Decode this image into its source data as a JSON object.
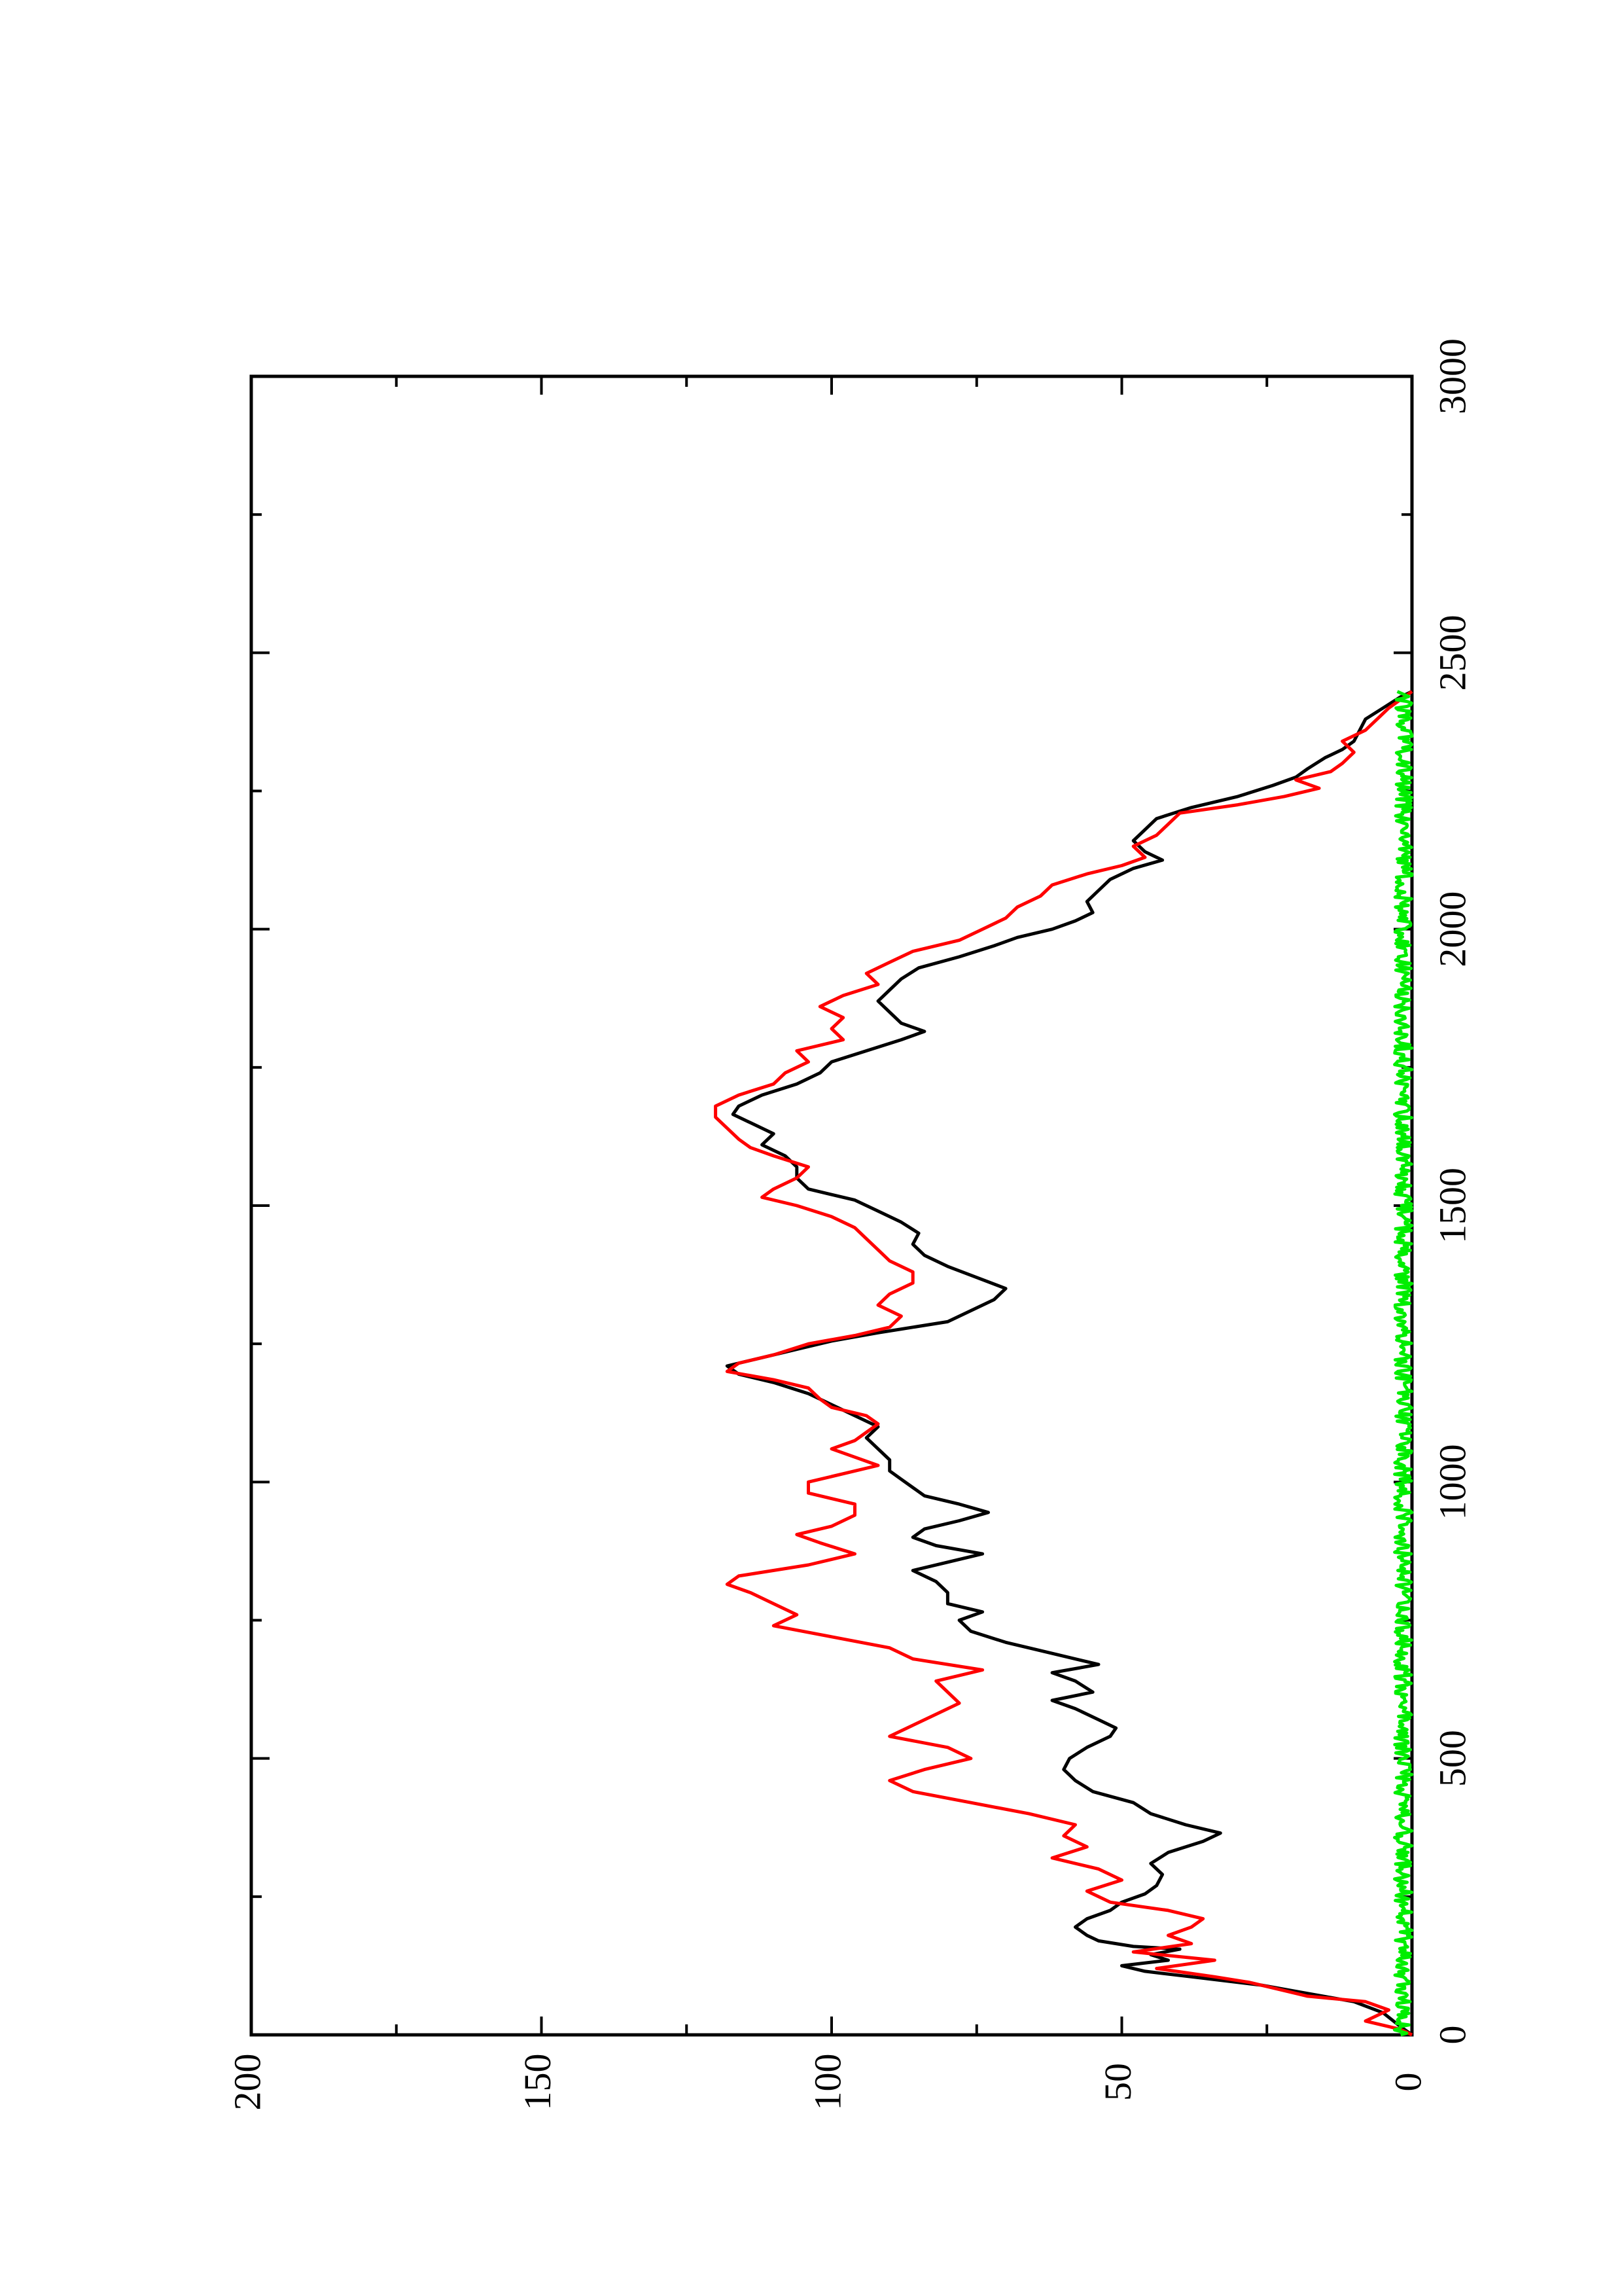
{
  "chart_data": {
    "type": "line",
    "orientation": "rotated-90-counterclockwise",
    "title": "",
    "xlabel": "",
    "ylabel": "",
    "xlim": [
      0,
      3000
    ],
    "ylim": [
      0,
      200
    ],
    "x_ticks": [
      0,
      500,
      1000,
      1500,
      2000,
      2500,
      3000
    ],
    "x_minor_ticks": [
      250,
      750,
      1250,
      1750,
      2250,
      2750
    ],
    "y_ticks": [
      0,
      50,
      100,
      150,
      200
    ],
    "y_minor_ticks": [
      25,
      75,
      125,
      175
    ],
    "x_tick_labels": [
      "0",
      "500",
      "1000",
      "1500",
      "2000",
      "2500",
      "3000"
    ],
    "y_tick_labels": [
      "0",
      "50",
      "100",
      "150",
      "200"
    ],
    "grid": false,
    "legend": "none",
    "series": [
      {
        "color": "#000000",
        "points": [
          [
            0,
            0
          ],
          [
            15,
            2
          ],
          [
            40,
            5
          ],
          [
            60,
            10
          ],
          [
            75,
            18
          ],
          [
            90,
            26
          ],
          [
            105,
            38
          ],
          [
            115,
            46
          ],
          [
            125,
            50
          ],
          [
            135,
            42
          ],
          [
            145,
            45
          ],
          [
            155,
            40
          ],
          [
            160,
            48
          ],
          [
            170,
            54
          ],
          [
            180,
            56
          ],
          [
            195,
            58
          ],
          [
            210,
            56
          ],
          [
            225,
            52
          ],
          [
            240,
            50
          ],
          [
            255,
            46
          ],
          [
            270,
            44
          ],
          [
            290,
            43
          ],
          [
            310,
            45
          ],
          [
            330,
            42
          ],
          [
            350,
            36
          ],
          [
            365,
            33
          ],
          [
            380,
            39
          ],
          [
            400,
            45
          ],
          [
            420,
            48
          ],
          [
            440,
            55
          ],
          [
            460,
            58
          ],
          [
            480,
            60
          ],
          [
            500,
            59
          ],
          [
            520,
            56
          ],
          [
            540,
            52
          ],
          [
            555,
            51
          ],
          [
            570,
            54
          ],
          [
            590,
            58
          ],
          [
            605,
            62
          ],
          [
            620,
            55
          ],
          [
            640,
            58
          ],
          [
            655,
            62
          ],
          [
            670,
            54
          ],
          [
            690,
            62
          ],
          [
            710,
            70
          ],
          [
            730,
            76
          ],
          [
            750,
            78
          ],
          [
            765,
            74
          ],
          [
            780,
            80
          ],
          [
            800,
            80
          ],
          [
            820,
            82
          ],
          [
            840,
            86
          ],
          [
            855,
            80
          ],
          [
            870,
            74
          ],
          [
            885,
            82
          ],
          [
            900,
            86
          ],
          [
            915,
            84
          ],
          [
            930,
            78
          ],
          [
            945,
            73
          ],
          [
            960,
            78
          ],
          [
            975,
            84
          ],
          [
            990,
            86
          ],
          [
            1005,
            88
          ],
          [
            1020,
            90
          ],
          [
            1040,
            90
          ],
          [
            1060,
            92
          ],
          [
            1080,
            94
          ],
          [
            1100,
            92
          ],
          [
            1120,
            96
          ],
          [
            1140,
            100
          ],
          [
            1160,
            104
          ],
          [
            1180,
            110
          ],
          [
            1195,
            116
          ],
          [
            1210,
            118
          ],
          [
            1225,
            112
          ],
          [
            1240,
            106
          ],
          [
            1255,
            100
          ],
          [
            1270,
            92
          ],
          [
            1290,
            80
          ],
          [
            1310,
            76
          ],
          [
            1330,
            72
          ],
          [
            1350,
            70
          ],
          [
            1370,
            75
          ],
          [
            1390,
            80
          ],
          [
            1410,
            84
          ],
          [
            1430,
            86
          ],
          [
            1450,
            85
          ],
          [
            1470,
            88
          ],
          [
            1490,
            92
          ],
          [
            1510,
            96
          ],
          [
            1530,
            104
          ],
          [
            1550,
            106
          ],
          [
            1570,
            106
          ],
          [
            1590,
            108
          ],
          [
            1610,
            112
          ],
          [
            1630,
            110
          ],
          [
            1650,
            114
          ],
          [
            1665,
            117
          ],
          [
            1680,
            116
          ],
          [
            1700,
            112
          ],
          [
            1720,
            106
          ],
          [
            1740,
            102
          ],
          [
            1760,
            100
          ],
          [
            1780,
            94
          ],
          [
            1800,
            88
          ],
          [
            1815,
            84
          ],
          [
            1830,
            88
          ],
          [
            1850,
            90
          ],
          [
            1870,
            92
          ],
          [
            1890,
            90
          ],
          [
            1910,
            88
          ],
          [
            1930,
            85
          ],
          [
            1950,
            78
          ],
          [
            1970,
            72
          ],
          [
            1985,
            68
          ],
          [
            2000,
            62
          ],
          [
            2015,
            58
          ],
          [
            2030,
            55
          ],
          [
            2050,
            56
          ],
          [
            2070,
            54
          ],
          [
            2090,
            52
          ],
          [
            2110,
            48
          ],
          [
            2125,
            43
          ],
          [
            2140,
            46
          ],
          [
            2160,
            48
          ],
          [
            2180,
            46
          ],
          [
            2200,
            44
          ],
          [
            2220,
            38
          ],
          [
            2240,
            30
          ],
          [
            2260,
            24
          ],
          [
            2275,
            20
          ],
          [
            2290,
            18
          ],
          [
            2310,
            15
          ],
          [
            2325,
            12
          ],
          [
            2340,
            10
          ],
          [
            2360,
            9
          ],
          [
            2380,
            8
          ],
          [
            2400,
            5
          ],
          [
            2420,
            2
          ],
          [
            2430,
            0
          ]
        ]
      },
      {
        "color": "#ff0000",
        "points": [
          [
            0,
            0
          ],
          [
            10,
            2
          ],
          [
            25,
            8
          ],
          [
            45,
            4
          ],
          [
            60,
            8
          ],
          [
            70,
            18
          ],
          [
            80,
            22
          ],
          [
            95,
            28
          ],
          [
            105,
            34
          ],
          [
            120,
            44
          ],
          [
            135,
            34
          ],
          [
            150,
            48
          ],
          [
            165,
            38
          ],
          [
            180,
            42
          ],
          [
            195,
            38
          ],
          [
            210,
            36
          ],
          [
            225,
            42
          ],
          [
            240,
            52
          ],
          [
            260,
            56
          ],
          [
            280,
            50
          ],
          [
            300,
            54
          ],
          [
            320,
            62
          ],
          [
            340,
            56
          ],
          [
            360,
            60
          ],
          [
            380,
            58
          ],
          [
            400,
            66
          ],
          [
            420,
            76
          ],
          [
            440,
            86
          ],
          [
            460,
            90
          ],
          [
            480,
            84
          ],
          [
            500,
            76
          ],
          [
            520,
            80
          ],
          [
            540,
            90
          ],
          [
            560,
            86
          ],
          [
            580,
            82
          ],
          [
            600,
            78
          ],
          [
            620,
            80
          ],
          [
            640,
            82
          ],
          [
            660,
            74
          ],
          [
            680,
            86
          ],
          [
            700,
            90
          ],
          [
            720,
            100
          ],
          [
            740,
            110
          ],
          [
            760,
            106
          ],
          [
            780,
            110
          ],
          [
            800,
            114
          ],
          [
            815,
            118
          ],
          [
            830,
            116
          ],
          [
            850,
            104
          ],
          [
            870,
            96
          ],
          [
            890,
            102
          ],
          [
            905,
            106
          ],
          [
            920,
            100
          ],
          [
            940,
            96
          ],
          [
            960,
            96
          ],
          [
            980,
            104
          ],
          [
            1000,
            104
          ],
          [
            1015,
            98
          ],
          [
            1030,
            92
          ],
          [
            1045,
            96
          ],
          [
            1060,
            100
          ],
          [
            1075,
            96
          ],
          [
            1090,
            94
          ],
          [
            1105,
            92
          ],
          [
            1120,
            94
          ],
          [
            1135,
            100
          ],
          [
            1150,
            102
          ],
          [
            1170,
            104
          ],
          [
            1185,
            110
          ],
          [
            1200,
            118
          ],
          [
            1215,
            116
          ],
          [
            1230,
            110
          ],
          [
            1250,
            104
          ],
          [
            1265,
            96
          ],
          [
            1280,
            90
          ],
          [
            1300,
            88
          ],
          [
            1320,
            92
          ],
          [
            1340,
            90
          ],
          [
            1360,
            86
          ],
          [
            1380,
            86
          ],
          [
            1400,
            90
          ],
          [
            1420,
            92
          ],
          [
            1440,
            94
          ],
          [
            1460,
            96
          ],
          [
            1480,
            100
          ],
          [
            1500,
            106
          ],
          [
            1515,
            112
          ],
          [
            1530,
            110
          ],
          [
            1550,
            106
          ],
          [
            1570,
            104
          ],
          [
            1590,
            110
          ],
          [
            1605,
            114
          ],
          [
            1620,
            116
          ],
          [
            1640,
            118
          ],
          [
            1660,
            120
          ],
          [
            1680,
            120
          ],
          [
            1700,
            116
          ],
          [
            1720,
            110
          ],
          [
            1740,
            108
          ],
          [
            1760,
            104
          ],
          [
            1780,
            106
          ],
          [
            1800,
            98
          ],
          [
            1820,
            100
          ],
          [
            1840,
            98
          ],
          [
            1860,
            102
          ],
          [
            1880,
            98
          ],
          [
            1900,
            92
          ],
          [
            1920,
            94
          ],
          [
            1940,
            90
          ],
          [
            1960,
            86
          ],
          [
            1980,
            78
          ],
          [
            2000,
            74
          ],
          [
            2020,
            70
          ],
          [
            2040,
            68
          ],
          [
            2060,
            64
          ],
          [
            2080,
            62
          ],
          [
            2100,
            56
          ],
          [
            2115,
            50
          ],
          [
            2130,
            46
          ],
          [
            2150,
            48
          ],
          [
            2170,
            44
          ],
          [
            2190,
            42
          ],
          [
            2210,
            40
          ],
          [
            2225,
            30
          ],
          [
            2240,
            22
          ],
          [
            2255,
            16
          ],
          [
            2270,
            20
          ],
          [
            2285,
            14
          ],
          [
            2300,
            12
          ],
          [
            2320,
            10
          ],
          [
            2340,
            12
          ],
          [
            2360,
            8
          ],
          [
            2380,
            6
          ],
          [
            2400,
            4
          ],
          [
            2415,
            2
          ],
          [
            2430,
            0
          ]
        ]
      },
      {
        "color": "#00ee00",
        "points": "noise",
        "amplitude": [
          0,
          3
        ],
        "x_range": [
          0,
          2430
        ]
      }
    ]
  }
}
